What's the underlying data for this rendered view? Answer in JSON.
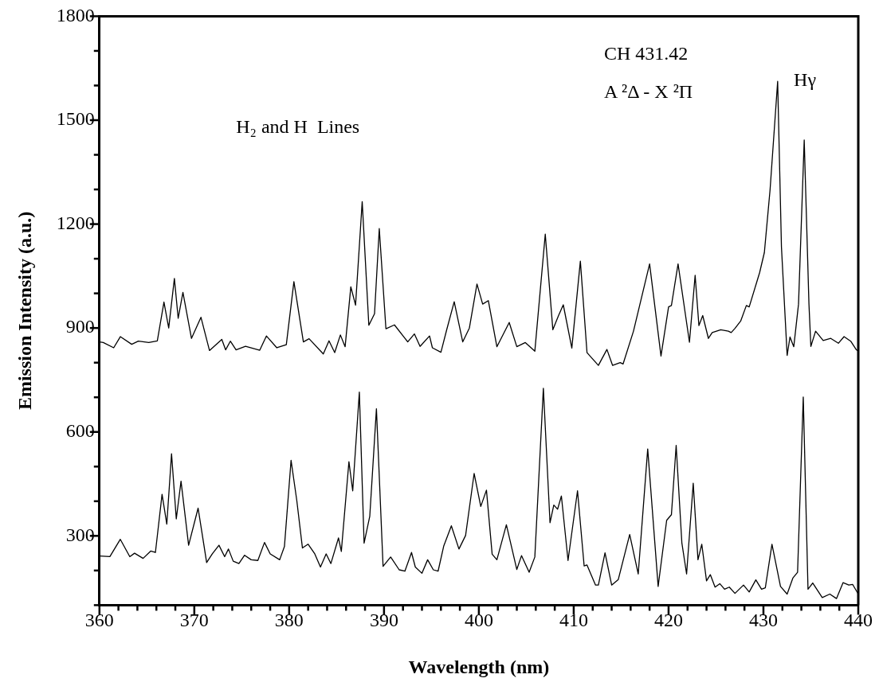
{
  "chart_data": {
    "type": "line",
    "xlabel": "Wavelength (nm)",
    "ylabel": "Emission Intensity (a.u.)",
    "xlim": [
      360,
      440
    ],
    "xticks": [
      360,
      {
        "value": 362,
        "label": null
      },
      {
        "value": 364,
        "label": null
      },
      {
        "value": 366,
        "label": null
      },
      {
        "value": 368,
        "label": null
      },
      370,
      {
        "value": 372,
        "label": null
      },
      {
        "value": 374,
        "label": null
      },
      {
        "value": 376,
        "label": null
      },
      {
        "value": 378,
        "label": null
      },
      380,
      {
        "value": 382,
        "label": null
      },
      {
        "value": 384,
        "label": null
      },
      {
        "value": 386,
        "label": null
      },
      {
        "value": 388,
        "label": null
      },
      390,
      {
        "value": 392,
        "label": null
      },
      {
        "value": 394,
        "label": null
      },
      {
        "value": 396,
        "label": null
      },
      {
        "value": 398,
        "label": null
      },
      400,
      {
        "value": 402,
        "label": null
      },
      {
        "value": 404,
        "label": null
      },
      {
        "value": 406,
        "label": null
      },
      {
        "value": 408,
        "label": null
      },
      410,
      {
        "value": 412,
        "label": null
      },
      {
        "value": 414,
        "label": null
      },
      {
        "value": 416,
        "label": null
      },
      {
        "value": 418,
        "label": null
      },
      420,
      {
        "value": 422,
        "label": null
      },
      {
        "value": 424,
        "label": null
      },
      {
        "value": 426,
        "label": null
      },
      {
        "value": 428,
        "label": null
      },
      430,
      {
        "value": 432,
        "label": null
      },
      {
        "value": 434,
        "label": null
      },
      {
        "value": 436,
        "label": null
      },
      {
        "value": 438,
        "label": null
      },
      440
    ],
    "ylim": [
      100,
      1800
    ],
    "yticks": [
      {
        "value": 100,
        "label": null
      },
      {
        "value": 200,
        "label": null
      },
      300,
      {
        "value": 400,
        "label": null
      },
      {
        "value": 500,
        "label": null
      },
      600,
      {
        "value": 700,
        "label": null
      },
      {
        "value": 800,
        "label": null
      },
      900,
      {
        "value": 1000,
        "label": null
      },
      {
        "value": 1100,
        "label": null
      },
      1200,
      {
        "value": 1300,
        "label": null
      },
      {
        "value": 1400,
        "label": null
      },
      1500,
      {
        "value": 1600,
        "label": null
      },
      {
        "value": 1700,
        "label": null
      },
      1800
    ],
    "grid": false,
    "legend": false,
    "marker": "none",
    "line_style": "solid",
    "annotations": [
      "H₂ and H  Lines",
      "CH 431.42",
      "A ²Δ - X ²Π",
      "Hγ"
    ],
    "series": [
      {
        "color": "#000000",
        "x": [
          360,
          360.4,
          361.5,
          362.2,
          363.4,
          364.1,
          365.2,
          366.1,
          366.8,
          367.3,
          367.9,
          368.3,
          368.8,
          369.7,
          370.7,
          371.6,
          372.9,
          373.3,
          373.8,
          374.4,
          375.4,
          376.9,
          377.6,
          378.7,
          379.7,
          380.5,
          381.5,
          382.1,
          383.6,
          384.2,
          384.8,
          385.4,
          385.9,
          386.5,
          387,
          387.7,
          388.4,
          389,
          389.5,
          390.2,
          391.1,
          392.5,
          393.2,
          393.8,
          394.8,
          395.1,
          396,
          396.6,
          397.4,
          398.3,
          399,
          399.8,
          400.4,
          401,
          401.9,
          403.2,
          404,
          404.9,
          405.9,
          407,
          407.8,
          408.4,
          408.9,
          409.8,
          410.7,
          411.4,
          412.6,
          413.5,
          414.1,
          414.9,
          415.2,
          416.3,
          418,
          419.2,
          420,
          420.3,
          421,
          422.2,
          422.8,
          423.2,
          423.6,
          424.2,
          424.6,
          425.5,
          426.3,
          426.6,
          427,
          427.6,
          428.2,
          428.5,
          429.6,
          430.1,
          430.7,
          431.5,
          431.9,
          432.5,
          432.8,
          433.2,
          433.7,
          434.3,
          434.8,
          435,
          435.5,
          436.3,
          437.1,
          437.9,
          438.5,
          439.2,
          439.8,
          440
        ],
        "values": [
          860,
          858,
          843,
          875,
          853,
          862,
          858,
          863,
          975,
          900,
          1043,
          928,
          1003,
          870,
          931,
          835,
          867,
          837,
          862,
          837,
          847,
          836,
          877,
          843,
          852,
          1034,
          860,
          869,
          825,
          863,
          829,
          880,
          846,
          1019,
          966,
          1265,
          908,
          941,
          1187,
          898,
          909,
          860,
          883,
          847,
          877,
          843,
          830,
          894,
          976,
          860,
          900,
          1027,
          969,
          979,
          846,
          916,
          846,
          858,
          833,
          1171,
          895,
          936,
          967,
          842,
          1093,
          829,
          792,
          838,
          792,
          800,
          796,
          891,
          1085,
          819,
          961,
          965,
          1085,
          859,
          1052,
          907,
          936,
          870,
          887,
          895,
          891,
          887,
          899,
          920,
          965,
          961,
          1060,
          1118,
          1299,
          1612,
          1134,
          821,
          874,
          846,
          969,
          1443,
          969,
          847,
          891,
          864,
          870,
          856,
          875,
          862,
          837,
          833
        ]
      },
      {
        "color": "#000000",
        "x": [
          360,
          361.1,
          362.2,
          363.2,
          363.7,
          364.6,
          365.4,
          365.9,
          366.6,
          367.1,
          367.6,
          368.1,
          368.6,
          369.4,
          370.4,
          371.3,
          371.9,
          372.6,
          373.2,
          373.6,
          374.1,
          374.7,
          375.3,
          376,
          376.7,
          377.4,
          378,
          379,
          379.5,
          380.2,
          380.8,
          381.4,
          382,
          382.7,
          383.3,
          383.9,
          384.4,
          385.2,
          385.5,
          386.3,
          386.7,
          387.4,
          387.9,
          388.5,
          389.2,
          389.9,
          390.7,
          391.6,
          392.2,
          392.9,
          393.3,
          394,
          394.6,
          395.2,
          395.7,
          396.3,
          397.1,
          397.9,
          398.6,
          399.5,
          400.2,
          400.8,
          401.4,
          401.9,
          402.9,
          404,
          404.5,
          405.3,
          405.9,
          406.8,
          407.5,
          407.9,
          408.3,
          408.7,
          409.4,
          410.4,
          411.1,
          411.4,
          412.3,
          412.6,
          413.3,
          414,
          414.7,
          415.9,
          416.8,
          417.8,
          418.9,
          419.8,
          420.3,
          420.8,
          421.4,
          421.9,
          422.6,
          423.1,
          423.5,
          424,
          424.4,
          424.9,
          425.4,
          425.9,
          426.4,
          427,
          427.9,
          428.5,
          429.2,
          429.8,
          430.2,
          430.9,
          431.8,
          432.5,
          433.1,
          433.6,
          434.2,
          434.7,
          435.2,
          436.2,
          437,
          437.7,
          438.4,
          439,
          439.4,
          440
        ],
        "values": [
          242,
          240,
          290,
          240,
          250,
          235,
          256,
          252,
          420,
          334,
          537,
          349,
          458,
          273,
          380,
          223,
          248,
          273,
          240,
          262,
          227,
          220,
          244,
          231,
          229,
          281,
          248,
          231,
          269,
          518,
          403,
          265,
          276,
          248,
          210,
          248,
          220,
          294,
          255,
          514,
          430,
          715,
          279,
          357,
          667,
          212,
          239,
          202,
          198,
          252,
          210,
          192,
          231,
          202,
          198,
          271,
          329,
          262,
          301,
          480,
          385,
          432,
          247,
          231,
          332,
          203,
          243,
          195,
          239,
          726,
          338,
          389,
          377,
          415,
          229,
          430,
          213,
          216,
          158,
          158,
          251,
          158,
          174,
          304,
          190,
          551,
          154,
          345,
          361,
          561,
          280,
          190,
          452,
          231,
          276,
          170,
          188,
          152,
          162,
          146,
          152,
          134,
          158,
          138,
          173,
          146,
          150,
          276,
          154,
          132,
          178,
          195,
          701,
          146,
          164,
          122,
          132,
          119,
          165,
          158,
          160,
          132
        ]
      }
    ]
  }
}
